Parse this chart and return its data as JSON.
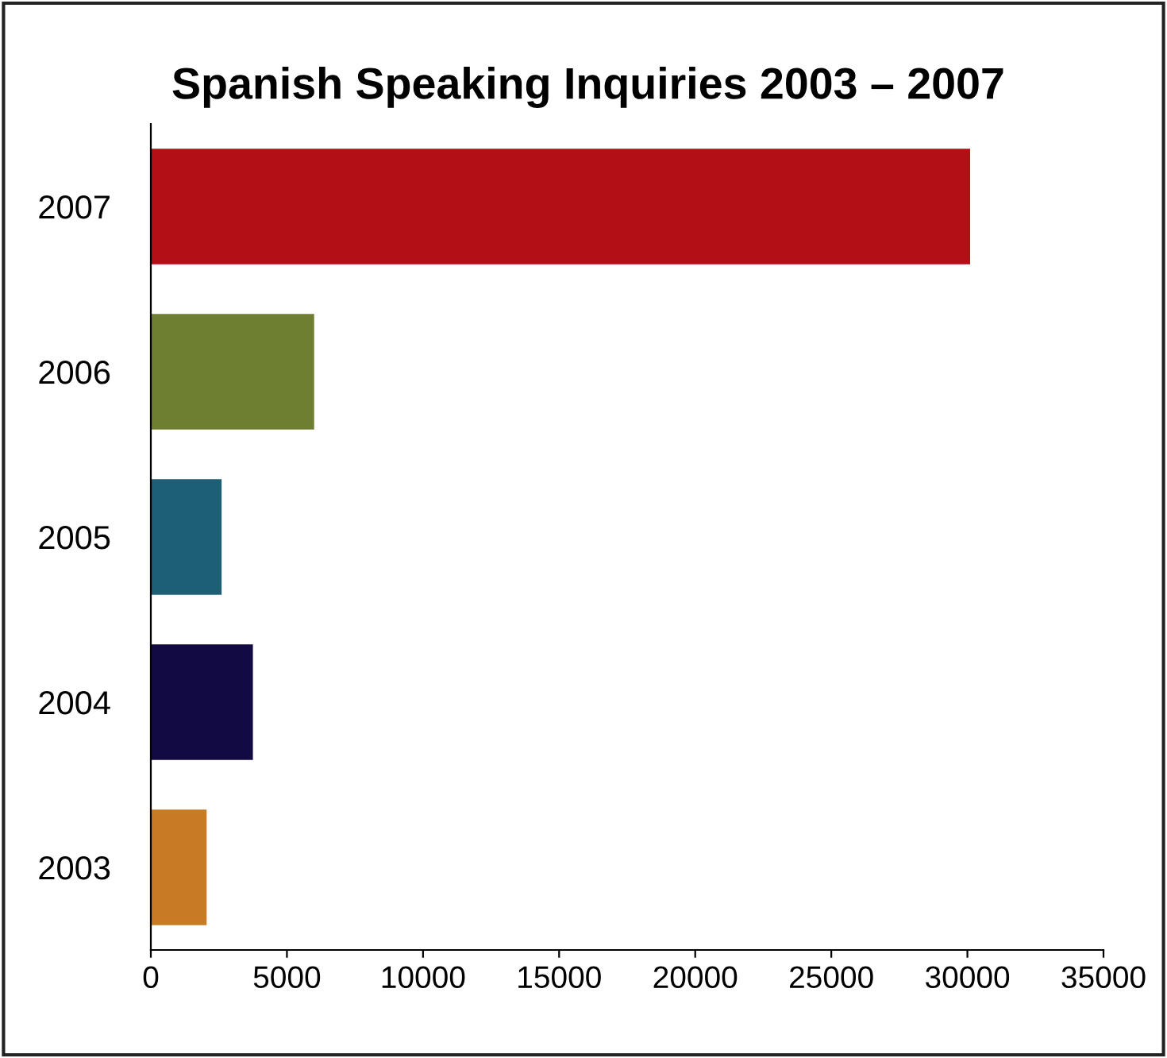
{
  "chart_data": {
    "type": "bar",
    "orientation": "horizontal",
    "title": "Spanish Speaking Inquiries 2003 – 2007",
    "categories": [
      "2007",
      "2006",
      "2005",
      "2004",
      "2003"
    ],
    "values": [
      30100,
      6000,
      2600,
      3750,
      2050
    ],
    "colors": [
      "#b20f17",
      "#6e7f31",
      "#1d5f74",
      "#120a42",
      "#c97a24"
    ],
    "xlim": [
      0,
      35000
    ],
    "xticks": [
      0,
      5000,
      10000,
      15000,
      20000,
      25000,
      30000,
      35000
    ],
    "grid": false,
    "legend": false
  }
}
